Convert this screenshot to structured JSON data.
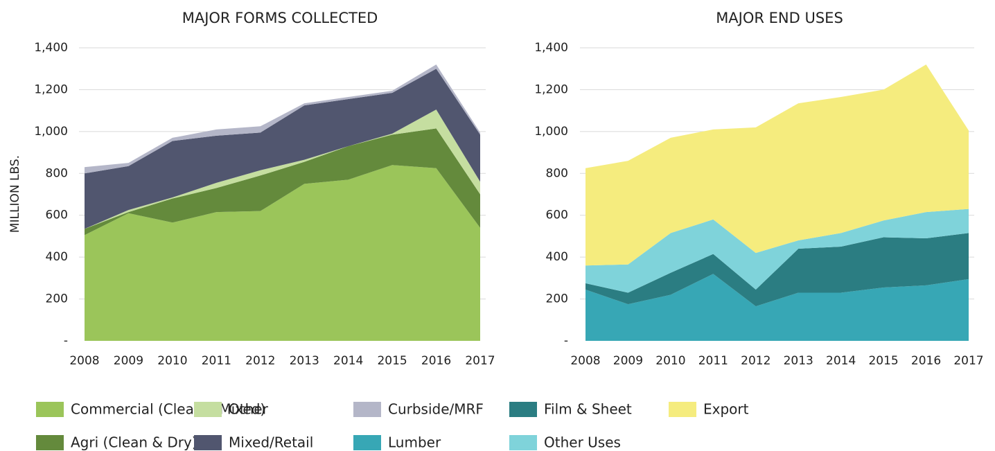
{
  "chart_data": [
    {
      "type": "stacked_area",
      "title": "MAJOR FORMS COLLECTED",
      "ylabel": "MILLION LBS.",
      "categories": [
        "2008",
        "2009",
        "2010",
        "2011",
        "2012",
        "2013",
        "2014",
        "2015",
        "2016",
        "2017"
      ],
      "ylim": [
        0,
        1400
      ],
      "yticks": [
        {
          "value": 0,
          "label": "-"
        },
        200,
        400,
        600,
        800,
        {
          "value": 1000,
          "label": "1,000"
        },
        {
          "value": 1200,
          "label": "1,200"
        },
        {
          "value": 1400,
          "label": "1,400"
        }
      ],
      "grid": true,
      "series": [
        {
          "name": "Commercial (Clear & Mixed)",
          "color": "#9bc55a",
          "values": [
            505,
            610,
            565,
            615,
            620,
            750,
            770,
            840,
            825,
            540
          ]
        },
        {
          "name": "Agri (Clean & Dry)",
          "color": "#648a3c",
          "values": [
            30,
            5,
            115,
            115,
            170,
            105,
            160,
            145,
            190,
            160
          ]
        },
        {
          "name": "Other",
          "color": "#c5dea0",
          "values": [
            0,
            10,
            5,
            25,
            25,
            10,
            0,
            5,
            90,
            60
          ]
        },
        {
          "name": "Mixed/Retail",
          "color": "#51566f",
          "values": [
            265,
            210,
            270,
            225,
            180,
            260,
            225,
            195,
            195,
            225
          ]
        },
        {
          "name": "Curbside/MRF",
          "color": "#b4b6c8",
          "values": [
            30,
            15,
            15,
            30,
            30,
            10,
            10,
            10,
            20,
            10
          ]
        }
      ]
    },
    {
      "type": "stacked_area",
      "title": "MAJOR END USES",
      "categories": [
        "2008",
        "2009",
        "2010",
        "2011",
        "2012",
        "2013",
        "2014",
        "2015",
        "2016",
        "2017"
      ],
      "ylim": [
        0,
        1400
      ],
      "yticks": [
        {
          "value": 0,
          "label": "-"
        },
        200,
        400,
        600,
        800,
        {
          "value": 1000,
          "label": "1,000"
        },
        {
          "value": 1200,
          "label": "1,200"
        },
        {
          "value": 1400,
          "label": "1,400"
        }
      ],
      "grid": true,
      "series": [
        {
          "name": "Lumber",
          "color": "#37a7b5",
          "values": [
            245,
            175,
            220,
            320,
            165,
            230,
            230,
            255,
            265,
            295
          ]
        },
        {
          "name": "Film & Sheet",
          "color": "#2b7d82",
          "values": [
            30,
            55,
            105,
            95,
            80,
            210,
            220,
            240,
            225,
            220
          ]
        },
        {
          "name": "Other Uses",
          "color": "#7fd3da",
          "values": [
            85,
            135,
            190,
            165,
            175,
            40,
            65,
            80,
            125,
            115
          ]
        },
        {
          "name": "Export",
          "color": "#f5ec7e",
          "values": [
            465,
            495,
            455,
            430,
            600,
            655,
            650,
            625,
            705,
            375
          ]
        }
      ]
    }
  ]
}
